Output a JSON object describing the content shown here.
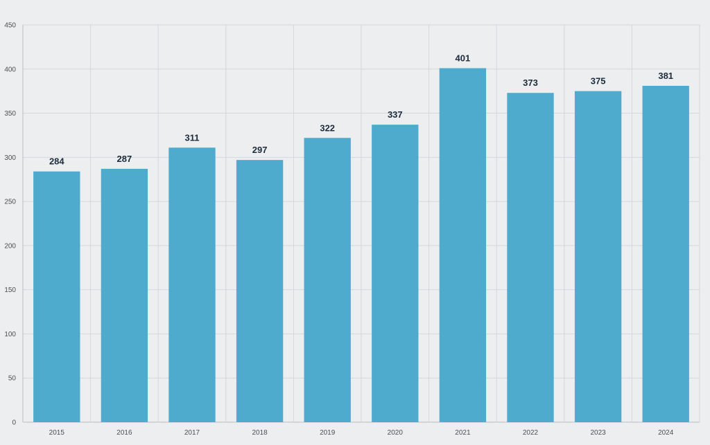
{
  "chart_data": {
    "type": "bar",
    "categories": [
      "2015",
      "2016",
      "2017",
      "2018",
      "2019",
      "2020",
      "2021",
      "2022",
      "2023",
      "2024"
    ],
    "values": [
      284,
      287,
      311,
      297,
      322,
      337,
      401,
      373,
      375,
      381
    ],
    "title": "",
    "xlabel": "",
    "ylabel": "",
    "ylim": [
      0,
      450
    ],
    "yticks": [
      0,
      50,
      100,
      150,
      200,
      250,
      300,
      350,
      400,
      450
    ],
    "grid": true,
    "data_labels": true,
    "bar_color": "#4eabcd",
    "background_color": "#eceef0"
  }
}
